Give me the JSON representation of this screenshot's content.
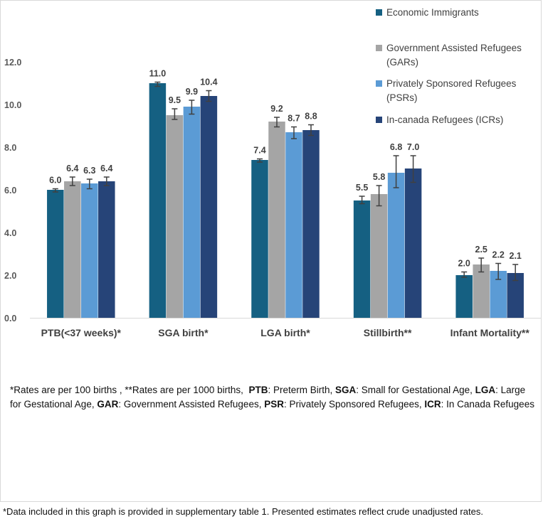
{
  "chart_data": {
    "type": "bar",
    "categories": [
      "PTB(<37 weeks)*",
      "SGA birth*",
      "LGA birth*",
      "Stillbirth**",
      "Infant Mortality**"
    ],
    "series": [
      {
        "name": "Economic Immigrants",
        "color": "#156082",
        "values": [
          6.0,
          11.0,
          7.4,
          5.5,
          2.0
        ],
        "labels": [
          "6.0",
          "11.0",
          "7.4",
          "5.5",
          "2.0"
        ],
        "errors": [
          [
            5.9,
            6.05
          ],
          [
            10.85,
            11.05
          ],
          [
            7.3,
            7.45
          ],
          [
            5.35,
            5.7
          ],
          [
            1.9,
            2.15
          ]
        ]
      },
      {
        "name": "Government Assisted Refugees (GARs)",
        "color": "#a5a5a5",
        "values": [
          6.4,
          9.5,
          9.2,
          5.8,
          2.5
        ],
        "labels": [
          "6.4",
          "9.5",
          "9.2",
          "5.8",
          "2.5"
        ],
        "errors": [
          [
            6.2,
            6.6
          ],
          [
            9.3,
            9.8
          ],
          [
            8.95,
            9.4
          ],
          [
            5.25,
            6.2
          ],
          [
            2.15,
            2.8
          ]
        ]
      },
      {
        "name": "Privately Sponsored Refugees (PSRs)",
        "color": "#5b9bd5",
        "values": [
          6.3,
          9.9,
          8.7,
          6.8,
          2.2
        ],
        "labels": [
          "6.3",
          "9.9",
          "8.7",
          "6.8",
          "2.2"
        ],
        "errors": [
          [
            6.05,
            6.5
          ],
          [
            9.55,
            10.2
          ],
          [
            8.4,
            8.95
          ],
          [
            6.1,
            7.6
          ],
          [
            1.8,
            2.55
          ]
        ]
      },
      {
        "name": "In-canada Refugees (ICRs)",
        "color": "#264478",
        "values": [
          6.4,
          10.4,
          8.8,
          7.0,
          2.1
        ],
        "labels": [
          "6.4",
          "10.4",
          "8.8",
          "7.0",
          "2.1"
        ],
        "errors": [
          [
            6.2,
            6.6
          ],
          [
            10.15,
            10.65
          ],
          [
            8.55,
            9.05
          ],
          [
            6.35,
            7.6
          ],
          [
            1.75,
            2.5
          ]
        ]
      }
    ],
    "yticks": [
      "0.0",
      "2.0",
      "4.0",
      "6.0",
      "8.0",
      "10.0",
      "12.0"
    ],
    "ylim": [
      0,
      12
    ],
    "grid": false,
    "legend_position": "top-right"
  },
  "notes": {
    "line1_prefix": "*Rates are per 100 births , **Rates are per 1000 births,",
    "items": [
      {
        "abbr": "PTB",
        "desc": ": Preterm Birth,"
      },
      {
        "abbr": "SGA",
        "desc": ": Small for Gestational Age,"
      },
      {
        "abbr": "LGA",
        "desc": ": Large for Gestational Age,"
      },
      {
        "abbr": "GAR",
        "desc": ": Government Assisted Refugees,"
      },
      {
        "abbr": "PSR",
        "desc": ": Privately Sponsored Refugees,"
      },
      {
        "abbr": "ICR",
        "desc": ": In Canada Refugees"
      }
    ]
  },
  "footnote": "*Data included in this graph is provided in supplementary table 1. Presented estimates reflect crude unadjusted rates."
}
